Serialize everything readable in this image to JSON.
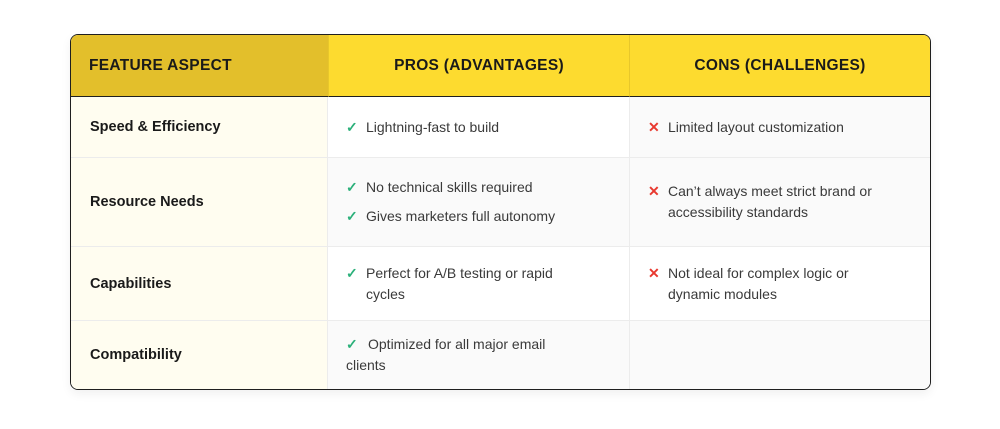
{
  "headers": {
    "aspect": "FEATURE ASPECT",
    "pros": "PROS (ADVANTAGES)",
    "cons": "CONS (CHALLENGES)"
  },
  "rows": [
    {
      "aspect": "Speed & Efficiency",
      "pros": [
        "Lightning-fast to build"
      ],
      "cons": [
        "Limited layout customization"
      ]
    },
    {
      "aspect": "Resource Needs",
      "pros": [
        "No technical skills required",
        "Gives marketers full autonomy"
      ],
      "cons": [
        "Can’t always meet strict brand or accessibility standards"
      ]
    },
    {
      "aspect": "Capabilities",
      "pros": [
        "Perfect for A/B testing or rapid cycles"
      ],
      "cons": [
        "Not ideal for complex logic or dynamic modules"
      ]
    },
    {
      "aspect": "Compatibility",
      "pros": [
        "Optimized for all major email clients"
      ],
      "cons": []
    }
  ],
  "icons": {
    "pro": "check-icon",
    "con": "cross-icon"
  },
  "colors": {
    "header_first": "#e3bf2b",
    "header": "#fddb2f",
    "check": "#2bb07a",
    "cross": "#e8392f"
  }
}
